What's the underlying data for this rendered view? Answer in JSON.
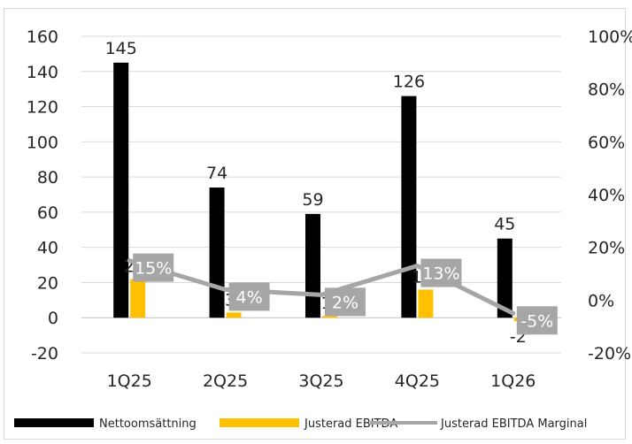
{
  "chart_data": {
    "type": "bar",
    "title": "",
    "categories": [
      "1Q25",
      "2Q25",
      "3Q25",
      "4Q25",
      "1Q26"
    ],
    "series": [
      {
        "name": "Nettoomsättning",
        "type": "bar",
        "axis": "left",
        "color": "#000000",
        "values": [
          145,
          74,
          59,
          126,
          45
        ],
        "labels": [
          "145",
          "74",
          "59",
          "126",
          "45"
        ]
      },
      {
        "name": "Justerad EBITDA",
        "type": "bar",
        "axis": "left",
        "color": "#FFC000",
        "values": [
          22,
          3,
          1,
          16,
          -2
        ],
        "labels": [
          "22",
          "3",
          "1",
          "16",
          "-2"
        ]
      },
      {
        "name": "Justerad EBITDA Marginal",
        "type": "line",
        "axis": "right",
        "color": "#A6A6A6",
        "values": [
          15,
          4,
          2,
          13,
          -5
        ],
        "labels": [
          "15%",
          "4%",
          "2%",
          "13%",
          "-5%"
        ]
      }
    ],
    "y_left": {
      "min": -20,
      "max": 160,
      "step": 20,
      "ticks": [
        "-20",
        "0",
        "20",
        "40",
        "60",
        "80",
        "100",
        "120",
        "140",
        "160"
      ]
    },
    "y_right": {
      "min": -20,
      "max": 100,
      "step": 20,
      "ticks": [
        "-20%",
        "0%",
        "20%",
        "40%",
        "60%",
        "80%",
        "100%"
      ]
    },
    "grid": true,
    "legend": "bottom"
  }
}
